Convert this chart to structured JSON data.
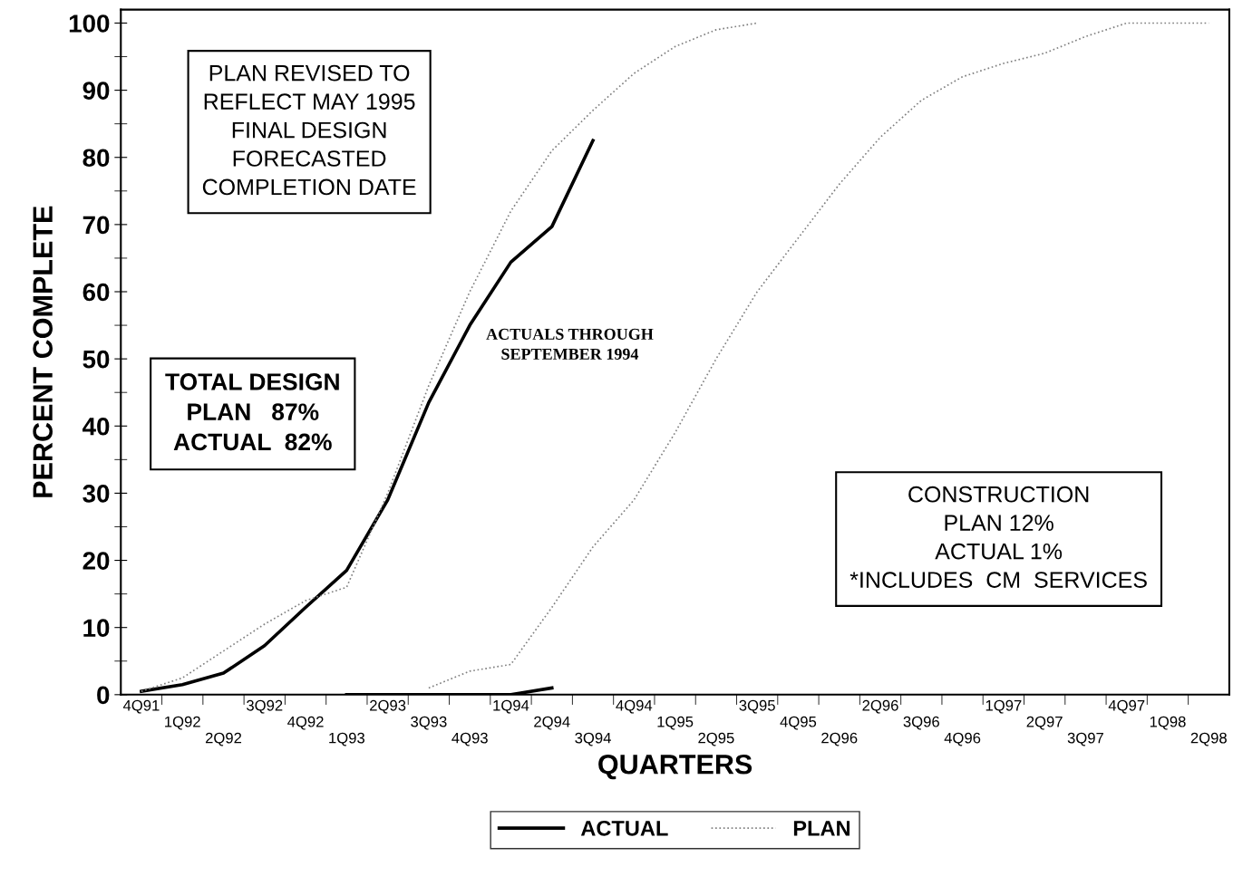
{
  "chart_data": {
    "type": "line",
    "xlabel": "QUARTERS",
    "ylabel": "PERCENT COMPLETE",
    "categories": [
      "4Q91",
      "1Q92",
      "2Q92",
      "3Q92",
      "4Q92",
      "1Q93",
      "2Q93",
      "3Q93",
      "4Q93",
      "1Q94",
      "2Q94",
      "3Q94",
      "4Q94",
      "1Q95",
      "2Q95",
      "3Q95",
      "4Q95",
      "2Q96",
      "2Q96",
      "3Q96",
      "4Q96",
      "1Q97",
      "2Q97",
      "3Q97",
      "4Q97",
      "1Q98",
      "2Q98"
    ],
    "series": [
      {
        "name": "ACTUAL",
        "color": "#000000",
        "line_style": "solid",
        "values": [
          0.5,
          1.5,
          3.2,
          7.3,
          13,
          18.5,
          29,
          43.5,
          55,
          64.4,
          69.7,
          82.5,
          null,
          null,
          null,
          null,
          null,
          null,
          null,
          null,
          null,
          null,
          null,
          null,
          null,
          null,
          null
        ]
      },
      {
        "name": "PLAN",
        "color": "#808080",
        "line_style": "dotted",
        "values": [
          0.5,
          2.5,
          6.5,
          10.5,
          14,
          16,
          30,
          46,
          60,
          72,
          81,
          87,
          92.5,
          96.5,
          99,
          100,
          null,
          null,
          null,
          null,
          null,
          null,
          null,
          null,
          null,
          null,
          null
        ]
      },
      {
        "color": "#000000",
        "line_style": "solid",
        "values": [
          null,
          null,
          null,
          null,
          null,
          0,
          0,
          0,
          0,
          0,
          1,
          null,
          null,
          null,
          null,
          null,
          null,
          null,
          null,
          null,
          null,
          null,
          null,
          null,
          null,
          null,
          null
        ]
      },
      {
        "color": "#808080",
        "line_style": "dotted",
        "values": [
          null,
          null,
          null,
          null,
          null,
          null,
          null,
          1,
          3.5,
          4.5,
          13,
          22,
          29,
          39,
          50,
          60,
          68,
          76,
          83,
          88.5,
          92,
          94,
          95.5,
          98,
          100,
          100,
          100
        ]
      }
    ],
    "ylim": [
      0,
      102
    ],
    "yticks": [
      0,
      10,
      20,
      30,
      40,
      50,
      60,
      70,
      80,
      90,
      100
    ],
    "grid": false,
    "legend": "bottom",
    "marker": "none",
    "annotations": [
      "PLAN REVISED TO\nREFLECT MAY 1995\nFINAL DESIGN\nFORECASTED\nCOMPLETION DATE",
      "TOTAL DESIGN\nPLAN   87%\nACTUAL  82%",
      "ACTUALS THROUGH\nSEPTEMBER 1994",
      "CONSTRUCTION\nPLAN 12%\nACTUAL 1%\n*INCLUDES  CM  SERVICES"
    ]
  }
}
